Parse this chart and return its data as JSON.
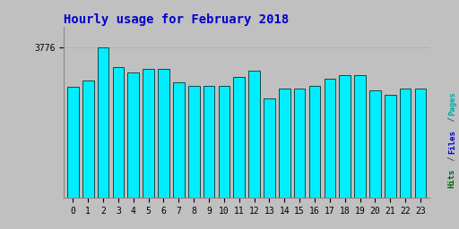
{
  "title": "Hourly usage for February 2018",
  "title_color": "#0000cc",
  "title_fontsize": 10,
  "background_color": "#c0c0c0",
  "plot_bg_color": "#c0c0c0",
  "hours": [
    0,
    1,
    2,
    3,
    4,
    5,
    6,
    7,
    8,
    9,
    10,
    11,
    12,
    13,
    14,
    15,
    16,
    17,
    18,
    19,
    20,
    21,
    22,
    23
  ],
  "pages": [
    2800,
    2950,
    3776,
    3300,
    3150,
    3250,
    3250,
    2900,
    2820,
    2820,
    2820,
    3050,
    3200,
    2500,
    2750,
    2750,
    2820,
    3000,
    3100,
    3100,
    2700,
    2600,
    2750,
    2750
  ],
  "files": [
    2720,
    2870,
    3730,
    3230,
    3080,
    3180,
    3180,
    2830,
    2750,
    2750,
    2750,
    2980,
    3130,
    2430,
    2680,
    2680,
    2750,
    2930,
    3030,
    3030,
    2630,
    2530,
    2680,
    2680
  ],
  "hits": [
    2650,
    2800,
    3650,
    3150,
    3000,
    3100,
    3100,
    2750,
    2650,
    2650,
    2650,
    2900,
    3050,
    2350,
    2600,
    2600,
    2670,
    2850,
    2950,
    2950,
    2550,
    2450,
    2600,
    2600
  ],
  "ymax": 4300,
  "ytick_label": "3776",
  "ytick_value": 3776,
  "bar_color_pages": "#00eeff",
  "bar_color_files": "#0055ff",
  "bar_color_hits": "#007755",
  "bar_edge_color": "#003333",
  "ylabel_color_pages": "#00aaaa",
  "ylabel_color_files": "#0000cc",
  "ylabel_color_hits": "#006600"
}
